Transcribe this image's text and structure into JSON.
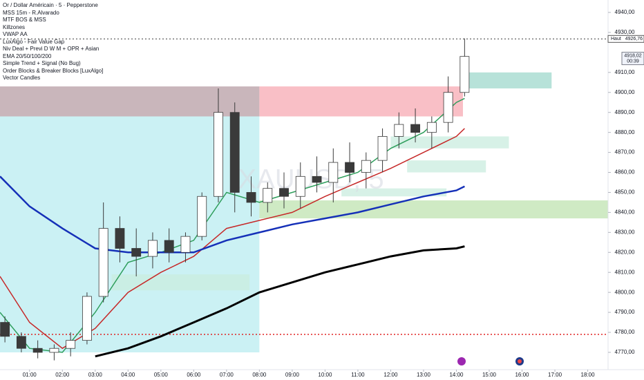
{
  "chart_data": {
    "type": "candlestick",
    "title": "Or / Dollar Américain · 5 · Pepperstone",
    "indicators": [
      "MSS 15m - R.Alvarado",
      "MTF BOS & MSS",
      "Killzones",
      "VWAP AA",
      "LuxAlgo - Fair Value Gap",
      "Niv Deal + Previ D W M + OPR + Asian",
      "EMA 20/50/100/200",
      "Simple Trend + Signal (No Bug)",
      "Order Blocks & Breaker Blocks [LuxAlgo]",
      "Vector Candles"
    ],
    "watermark": "XAUUSD, 5",
    "up_color": "#ffffff",
    "down_color": "#3a3a3a",
    "wick_color": "#3a3a3a",
    "candles": {
      "x": [
        0.25,
        0.75,
        1.25,
        1.75,
        2.25,
        2.75,
        3.25,
        3.75,
        4.25,
        4.75,
        5.25,
        5.75,
        6.25,
        6.75,
        7.25,
        7.75,
        8.25,
        8.75,
        9.25,
        9.75,
        10.25,
        10.75,
        11.25,
        11.75,
        12.25,
        12.75,
        13.25,
        13.75,
        14.25
      ],
      "open": [
        4785,
        4778,
        4772,
        4770,
        4772,
        4776,
        4798,
        4832,
        4822,
        4818,
        4826,
        4820,
        4828,
        4848,
        4890,
        4850,
        4845,
        4852,
        4848,
        4858,
        4855,
        4865,
        4860,
        4866,
        4878,
        4884,
        4880,
        4885,
        4900
      ],
      "high": [
        4788,
        4780,
        4776,
        4774,
        4780,
        4800,
        4845,
        4838,
        4832,
        4830,
        4832,
        4830,
        4850,
        4902,
        4895,
        4858,
        4855,
        4860,
        4865,
        4868,
        4872,
        4875,
        4870,
        4882,
        4890,
        4892,
        4888,
        4908,
        4927
      ],
      "low": [
        4775,
        4770,
        4767,
        4766,
        4768,
        4774,
        4795,
        4815,
        4808,
        4812,
        4815,
        4815,
        4826,
        4845,
        4840,
        4838,
        4840,
        4842,
        4842,
        4850,
        4845,
        4855,
        4852,
        4860,
        4872,
        4875,
        4872,
        4880,
        4898
      ],
      "close": [
        4778,
        4772,
        4770,
        4772,
        4776,
        4798,
        4832,
        4822,
        4818,
        4826,
        4820,
        4828,
        4848,
        4890,
        4850,
        4845,
        4852,
        4848,
        4858,
        4855,
        4865,
        4860,
        4866,
        4878,
        4884,
        4880,
        4885,
        4900,
        4918
      ]
    },
    "x": [
      0.1,
      1,
      2,
      3,
      4,
      5,
      6,
      7,
      8,
      9,
      10,
      11,
      12,
      13,
      14,
      14.25
    ],
    "series": [
      {
        "name": "EMA 20",
        "color": "#2e9e5b",
        "values": [
          4790,
          4772,
          4770,
          4790,
          4815,
          4820,
          4826,
          4850,
          4845,
          4850,
          4855,
          4860,
          4872,
          4880,
          4895,
          4897
        ]
      },
      {
        "name": "EMA 50",
        "color": "#c62828",
        "values": [
          4808,
          4785,
          4772,
          4782,
          4800,
          4810,
          4818,
          4832,
          4836,
          4840,
          4848,
          4855,
          4862,
          4870,
          4878,
          4882
        ]
      },
      {
        "name": "EMA 100",
        "color": "#1530b8",
        "values": [
          4858,
          4843,
          4832,
          4822,
          4820,
          4820,
          4820,
          4826,
          4830,
          4834,
          4837,
          4840,
          4844,
          4848,
          4851,
          4853
        ]
      },
      {
        "name": "EMA 200",
        "color": "#000000",
        "values": [
          null,
          null,
          null,
          4768,
          4772,
          4778,
          4785,
          4792,
          4800,
          4805,
          4810,
          4814,
          4818,
          4821,
          4822,
          4823
        ]
      }
    ],
    "zones": [
      {
        "x": [
          0.1,
          8.0
        ],
        "y": [
          4770,
          4888
        ],
        "color": "#b9ecf0"
      },
      {
        "x": [
          0.1,
          8.0
        ],
        "y": [
          4888,
          4903
        ],
        "color": "#b79ea4"
      },
      {
        "x": [
          8.0,
          14.2
        ],
        "y": [
          4888,
          4903
        ],
        "color": "#f7a9b3"
      },
      {
        "x": [
          14.2,
          16.9
        ],
        "y": [
          4902,
          4910
        ],
        "color": "#9fd8cc"
      },
      {
        "x": [
          8.0,
          18.62
        ],
        "y": [
          4837,
          4846
        ],
        "color": "#bfe3b0"
      },
      {
        "x": [
          12.0,
          15.6
        ],
        "y": [
          4872,
          4878
        ],
        "color": "#c9ecdf"
      },
      {
        "x": [
          12.5,
          14.9
        ],
        "y": [
          4860,
          4866
        ],
        "color": "#c9ecdf"
      },
      {
        "x": [
          10.5,
          13.7
        ],
        "y": [
          4848,
          4852
        ],
        "color": "#c9ecdf"
      },
      {
        "x": [
          3.5,
          7.7
        ],
        "y": [
          4801,
          4809
        ],
        "color": "#c9ecdf"
      }
    ],
    "levels": [
      {
        "value": 4779,
        "color": "#e02020"
      },
      {
        "value": 4926.76,
        "color": "#777777"
      }
    ],
    "xlim": [
      0.1,
      18.62
    ],
    "ylim": [
      4770.0,
      4940.0
    ],
    "xticks": [
      {
        "value": 1,
        "label": "01:00"
      },
      {
        "value": 2,
        "label": "02:00"
      },
      {
        "value": 3,
        "label": "03:00"
      },
      {
        "value": 4,
        "label": "04:00"
      },
      {
        "value": 5,
        "label": "05:00"
      },
      {
        "value": 6,
        "label": "06:00"
      },
      {
        "value": 7,
        "label": "07:00"
      },
      {
        "value": 8,
        "label": "08:00"
      },
      {
        "value": 9,
        "label": "09:00"
      },
      {
        "value": 10,
        "label": "10:00"
      },
      {
        "value": 11,
        "label": "11:00"
      },
      {
        "value": 12,
        "label": "12:00"
      },
      {
        "value": 13,
        "label": "13:00"
      },
      {
        "value": 14,
        "label": "14:00"
      },
      {
        "value": 15,
        "label": "15:00"
      },
      {
        "value": 16,
        "label": "16:00"
      },
      {
        "value": 17,
        "label": "17:00"
      },
      {
        "value": 18,
        "label": "18:00"
      }
    ],
    "yticks": [
      {
        "value": 4940,
        "label": "4940,00"
      },
      {
        "value": 4930,
        "label": "4930,00"
      },
      {
        "value": 4910,
        "label": "4910,00"
      },
      {
        "value": 4900,
        "label": "4900,00"
      },
      {
        "value": 4890,
        "label": "4890,00"
      },
      {
        "value": 4880,
        "label": "4880,00"
      },
      {
        "value": 4870,
        "label": "4870,00"
      },
      {
        "value": 4860,
        "label": "4860,00"
      },
      {
        "value": 4850,
        "label": "4850,00"
      },
      {
        "value": 4840,
        "label": "4840,00"
      },
      {
        "value": 4830,
        "label": "4830,00"
      },
      {
        "value": 4820,
        "label": "4820,00"
      },
      {
        "value": 4810,
        "label": "4810,00"
      },
      {
        "value": 4800,
        "label": "4800,00"
      },
      {
        "value": 4790,
        "label": "4790,00"
      },
      {
        "value": 4780,
        "label": "4780,00"
      },
      {
        "value": 4770,
        "label": "4770,00"
      }
    ],
    "high_label": {
      "name": "Haut",
      "value": 4926.76,
      "label": "4926,76"
    },
    "last_price": {
      "value": 4918.02,
      "label": "4918,02",
      "countdown": "00:39"
    }
  }
}
